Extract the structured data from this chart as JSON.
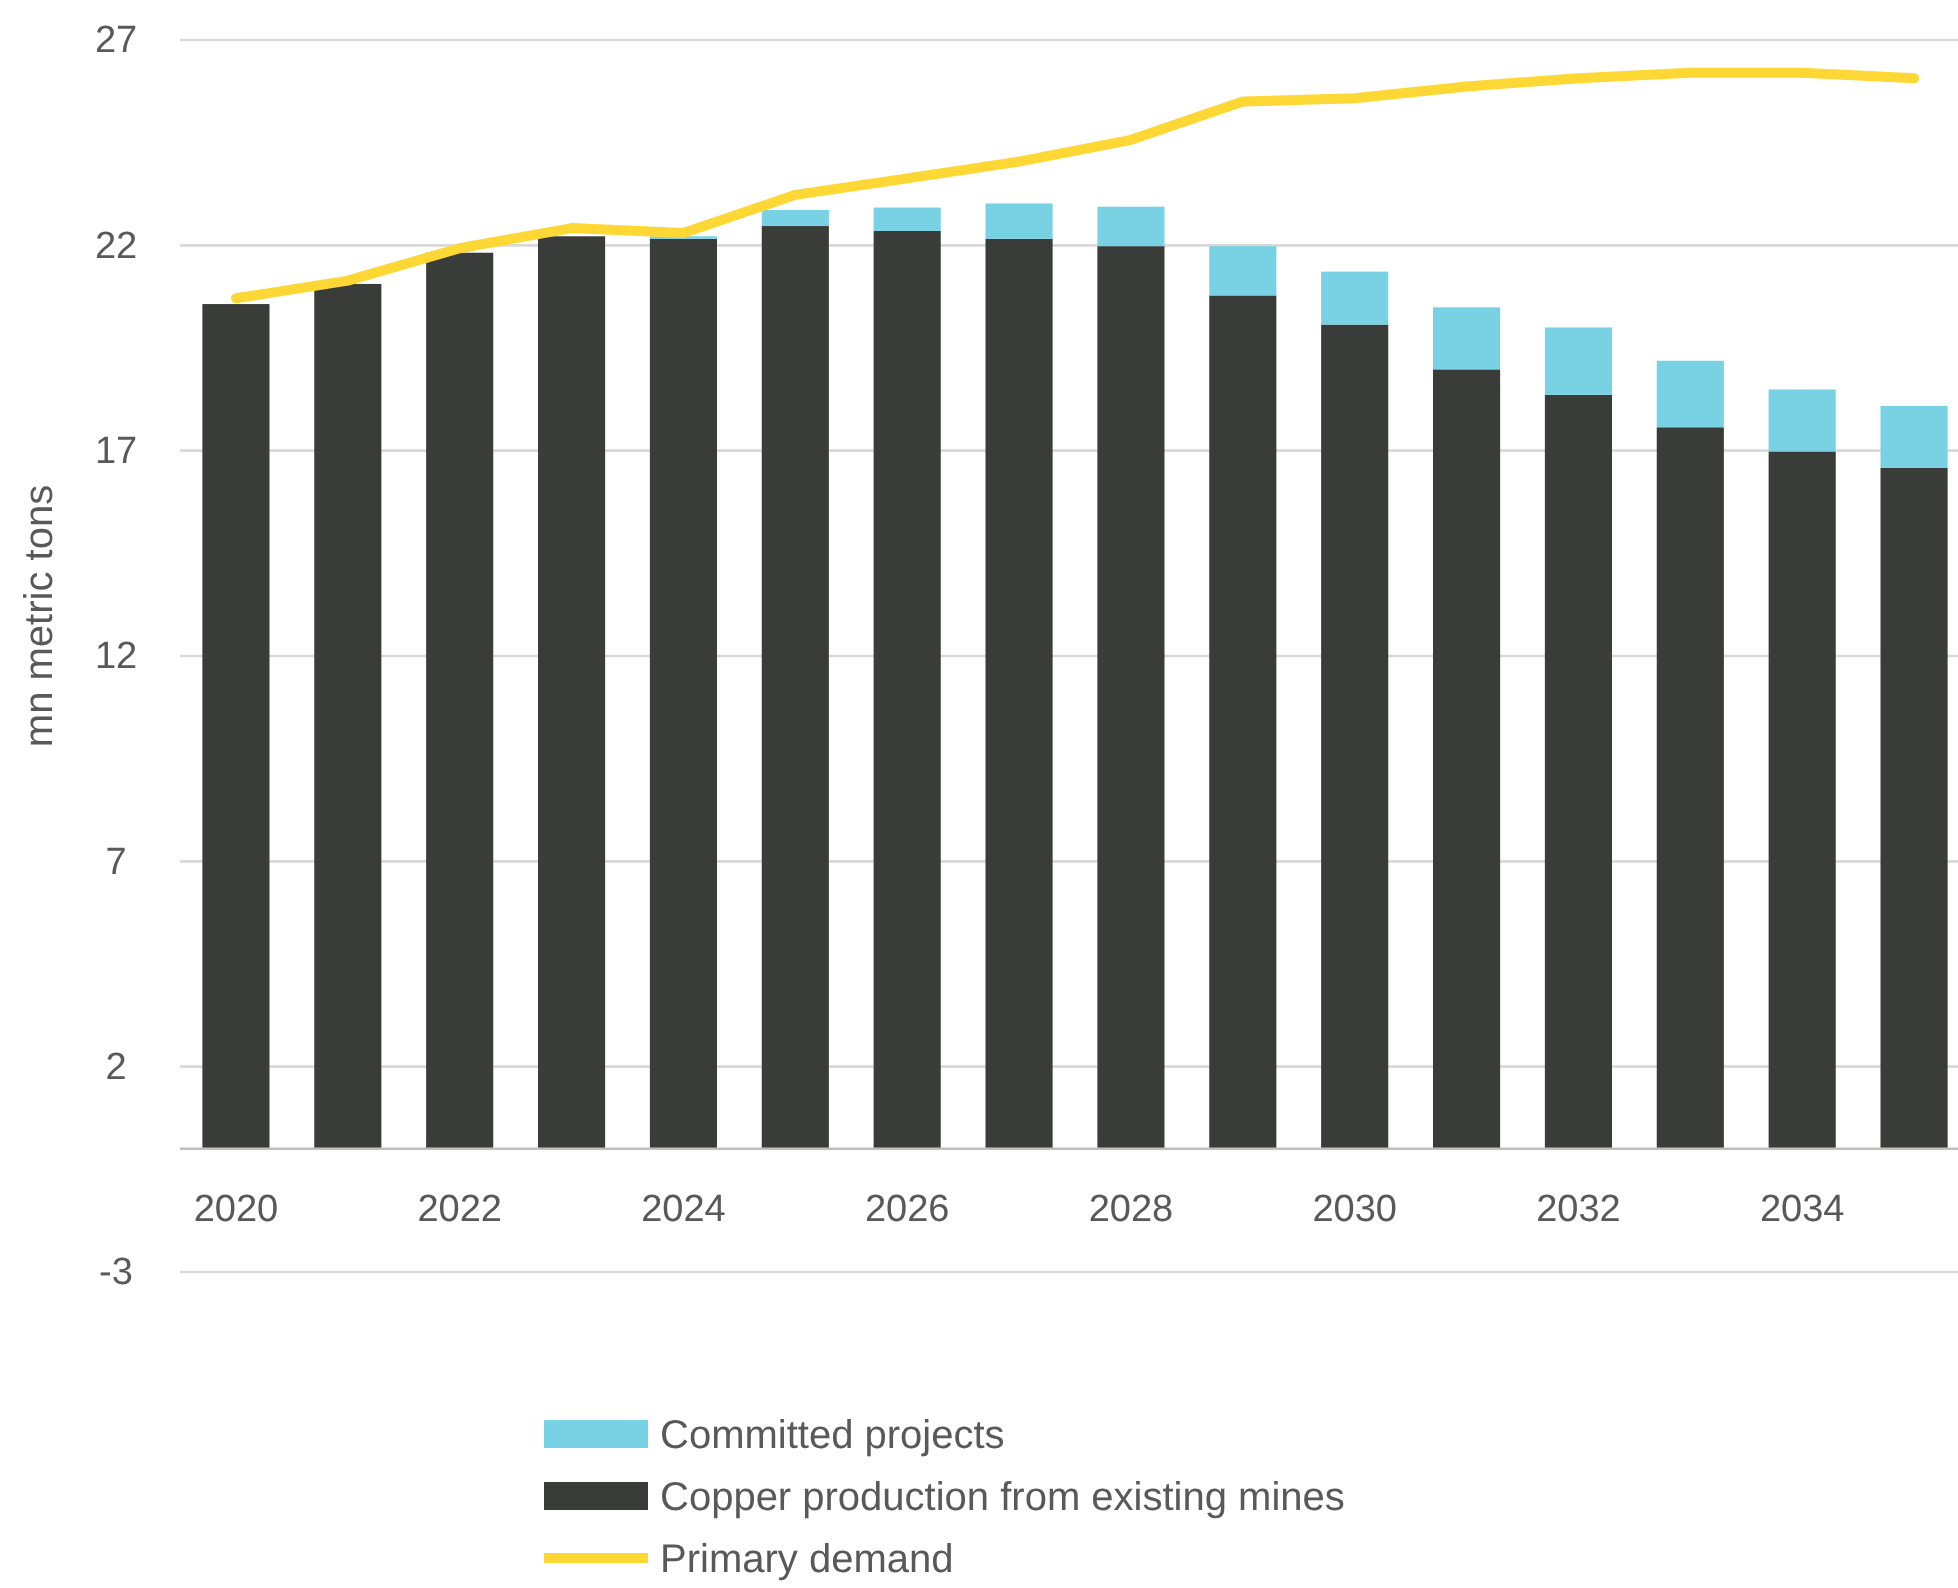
{
  "chart_data": {
    "type": "bar",
    "stacked": true,
    "ylabel": "mn metric tons",
    "categories": [
      "2020",
      null,
      "2022",
      null,
      "2024",
      null,
      "2026",
      null,
      "2028",
      null,
      "2030",
      null,
      "2032",
      null,
      "2034",
      null
    ],
    "series": [
      {
        "name": "Copper production from existing mines",
        "color": "#3a3c39",
        "values": [
          20.57,
          21.06,
          21.82,
          22.22,
          22.16,
          22.47,
          22.35,
          22.16,
          21.98,
          20.78,
          20.07,
          18.98,
          18.36,
          17.57,
          16.98,
          16.58
        ]
      },
      {
        "name": "Committed projects",
        "color": "#78d2e4",
        "values": [
          0,
          0,
          0,
          0,
          0.06,
          0.39,
          0.57,
          0.86,
          0.96,
          1.2,
          1.29,
          1.51,
          1.64,
          1.62,
          1.51,
          1.51
        ]
      },
      {
        "name": "Primary demand",
        "type": "line",
        "color": "#fdd835",
        "values": [
          20.71,
          21.14,
          21.93,
          22.42,
          22.3,
          23.23,
          23.63,
          24.04,
          24.57,
          25.5,
          25.58,
          25.87,
          26.07,
          26.2,
          26.2,
          26.07
        ]
      }
    ],
    "ylim": [
      -3,
      27
    ],
    "yticks": [
      -3,
      2,
      7,
      12,
      17,
      22,
      27
    ],
    "grid": "y",
    "legend": "bottom",
    "line_style": "solid"
  }
}
